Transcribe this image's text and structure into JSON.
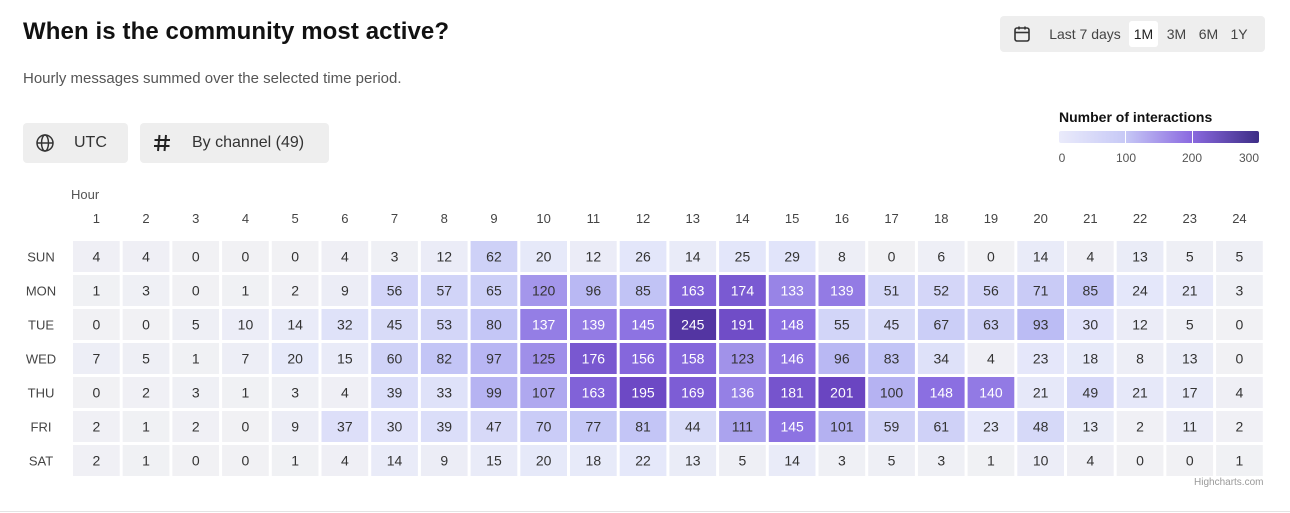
{
  "header": {
    "title": "When is the community most active?",
    "subtitle": "Hourly messages summed over the selected time period."
  },
  "range_selector": {
    "icon": "calendar-icon",
    "buttons": [
      "Last 7 days",
      "1M",
      "3M",
      "6M",
      "1Y"
    ],
    "selected": "1M"
  },
  "filters": {
    "timezone_icon": "globe-icon",
    "timezone": "UTC",
    "channel_icon": "hash-icon",
    "channel": "By channel (49)"
  },
  "legend": {
    "title": "Number of interactions",
    "min": 0,
    "max": 300,
    "labels": [
      "0",
      "100",
      "200",
      "300"
    ],
    "colors": [
      "#eaebfb",
      "#c7c9f6",
      "#8b6ae0",
      "#3d2d86"
    ]
  },
  "credit": "Highcharts.com",
  "chart_data": {
    "type": "heatmap",
    "x_title": "Hour",
    "x_categories": [
      "1",
      "2",
      "3",
      "4",
      "5",
      "6",
      "7",
      "8",
      "9",
      "10",
      "11",
      "12",
      "13",
      "14",
      "15",
      "16",
      "17",
      "18",
      "19",
      "20",
      "21",
      "22",
      "23",
      "24"
    ],
    "y_categories": [
      "SUN",
      "MON",
      "TUE",
      "WED",
      "THU",
      "FRI",
      "SAT"
    ],
    "values": [
      [
        4,
        4,
        0,
        0,
        0,
        4,
        3,
        12,
        62,
        20,
        12,
        26,
        14,
        25,
        29,
        8,
        0,
        6,
        0,
        14,
        4,
        13,
        5,
        5
      ],
      [
        1,
        3,
        0,
        1,
        2,
        9,
        56,
        57,
        65,
        120,
        96,
        85,
        163,
        174,
        133,
        139,
        51,
        52,
        56,
        71,
        85,
        24,
        21,
        3
      ],
      [
        0,
        0,
        5,
        10,
        14,
        32,
        45,
        53,
        80,
        137,
        139,
        145,
        245,
        191,
        148,
        55,
        45,
        67,
        63,
        93,
        30,
        12,
        5,
        0
      ],
      [
        7,
        5,
        1,
        7,
        20,
        15,
        60,
        82,
        97,
        125,
        176,
        156,
        158,
        123,
        146,
        96,
        83,
        34,
        4,
        23,
        18,
        8,
        13,
        0
      ],
      [
        0,
        2,
        3,
        1,
        3,
        4,
        39,
        33,
        99,
        107,
        163,
        195,
        169,
        136,
        181,
        201,
        100,
        148,
        140,
        21,
        49,
        21,
        17,
        4
      ],
      [
        2,
        1,
        2,
        0,
        9,
        37,
        30,
        39,
        47,
        70,
        77,
        81,
        44,
        111,
        145,
        101,
        59,
        61,
        23,
        48,
        13,
        2,
        11,
        2
      ],
      [
        2,
        1,
        0,
        0,
        1,
        4,
        14,
        9,
        15,
        20,
        18,
        22,
        13,
        5,
        14,
        3,
        5,
        3,
        1,
        10,
        4,
        0,
        0,
        1
      ]
    ],
    "color_min": 0,
    "color_max": 300
  }
}
